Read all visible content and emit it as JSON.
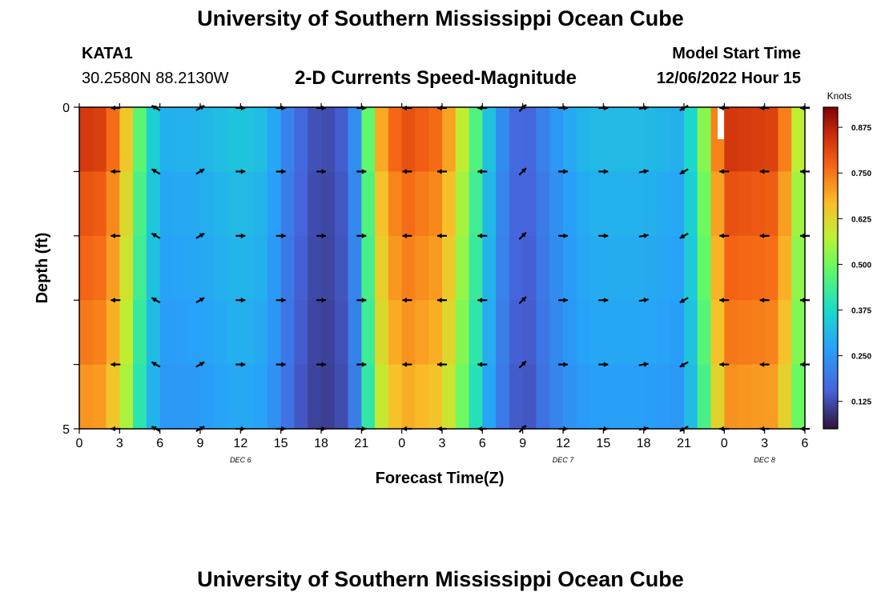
{
  "page": {
    "title_top": "University of Southern Mississippi Ocean Cube",
    "title_bottom": "University of Southern Mississippi Ocean Cube",
    "station": "KATA1",
    "coordinates": "30.2580N  88.2130W",
    "subtitle": "2-D Currents Speed-Magnitude",
    "start_label": "Model Start Time",
    "start_value": "12/06/2022 Hour 15"
  },
  "chart_data": {
    "type": "heatmap",
    "title": "2-D Currents Speed-Magnitude",
    "xlabel": "Forecast Time(Z)",
    "ylabel": "Depth (ft)",
    "x_hours": [
      0,
      48
    ],
    "y_depth": [
      0,
      5
    ],
    "x_ticks": [
      {
        "hour": 0,
        "label": "0"
      },
      {
        "hour": 3,
        "label": "3"
      },
      {
        "hour": 6,
        "label": "6"
      },
      {
        "hour": 9,
        "label": "9"
      },
      {
        "hour": 12,
        "label": "12"
      },
      {
        "hour": 15,
        "label": "15"
      },
      {
        "hour": 18,
        "label": "18"
      },
      {
        "hour": 21,
        "label": "21"
      },
      {
        "hour": 24,
        "label": "0"
      },
      {
        "hour": 27,
        "label": "3"
      },
      {
        "hour": 30,
        "label": "6"
      },
      {
        "hour": 33,
        "label": "9"
      },
      {
        "hour": 36,
        "label": "12"
      },
      {
        "hour": 39,
        "label": "15"
      },
      {
        "hour": 42,
        "label": "18"
      },
      {
        "hour": 45,
        "label": "21"
      },
      {
        "hour": 48,
        "label": "0"
      },
      {
        "hour": 51,
        "label": "3"
      },
      {
        "hour": 54,
        "label": "6"
      }
    ],
    "x_max_hour": 54,
    "day_labels": [
      {
        "hour": 12,
        "label": "DEC 6"
      },
      {
        "hour": 36,
        "label": "DEC 7"
      },
      {
        "hour": 51,
        "label": "DEC 8"
      }
    ],
    "y_ticks": [
      {
        "depth": 0,
        "label": "0"
      },
      {
        "depth": 5,
        "label": "5"
      }
    ],
    "colorbar": {
      "label": "Knots",
      "min": 0.05,
      "max": 0.93,
      "ticks": [
        "0.125",
        "0.250",
        "0.375",
        "0.500",
        "0.625",
        "0.750",
        "0.875"
      ],
      "tick_values": [
        0.125,
        0.25,
        0.375,
        0.5,
        0.625,
        0.75,
        0.875
      ]
    },
    "time_profile_knots": [
      {
        "hour": 0,
        "value": 0.8
      },
      {
        "hour": 2,
        "value": 0.78
      },
      {
        "hour": 3.5,
        "value": 0.62
      },
      {
        "hour": 4.5,
        "value": 0.45
      },
      {
        "hour": 6,
        "value": 0.28
      },
      {
        "hour": 9,
        "value": 0.29
      },
      {
        "hour": 12,
        "value": 0.32
      },
      {
        "hour": 14,
        "value": 0.3
      },
      {
        "hour": 16,
        "value": 0.17
      },
      {
        "hour": 18,
        "value": 0.11
      },
      {
        "hour": 20,
        "value": 0.15
      },
      {
        "hour": 21,
        "value": 0.3
      },
      {
        "hour": 22,
        "value": 0.62
      },
      {
        "hour": 24,
        "value": 0.77
      },
      {
        "hour": 27,
        "value": 0.72
      },
      {
        "hour": 29,
        "value": 0.5
      },
      {
        "hour": 31,
        "value": 0.25
      },
      {
        "hour": 33,
        "value": 0.13
      },
      {
        "hour": 34,
        "value": 0.18
      },
      {
        "hour": 36,
        "value": 0.26
      },
      {
        "hour": 38,
        "value": 0.3
      },
      {
        "hour": 40,
        "value": 0.3
      },
      {
        "hour": 42,
        "value": 0.3
      },
      {
        "hour": 45,
        "value": 0.28
      },
      {
        "hour": 46.5,
        "value": 0.5
      },
      {
        "hour": 48,
        "value": 0.8
      },
      {
        "hour": 52,
        "value": 0.78
      },
      {
        "hour": 53.5,
        "value": 0.55
      },
      {
        "hour": 54,
        "value": 0.35
      }
    ],
    "depth_layer_factor": [
      1.05,
      1.0,
      0.97,
      0.94,
      0.9
    ],
    "arrows": {
      "depths": [
        0,
        1,
        2,
        3,
        4,
        5
      ],
      "hours": [
        2.7,
        5.7,
        9,
        12,
        15,
        18,
        21,
        24.4,
        27,
        30,
        33,
        36,
        39,
        42,
        45,
        48,
        51,
        54
      ],
      "direction_deg": [
        180,
        150,
        30,
        0,
        0,
        0,
        0,
        180,
        180,
        180,
        45,
        0,
        0,
        10,
        210,
        180,
        180,
        180
      ]
    }
  }
}
